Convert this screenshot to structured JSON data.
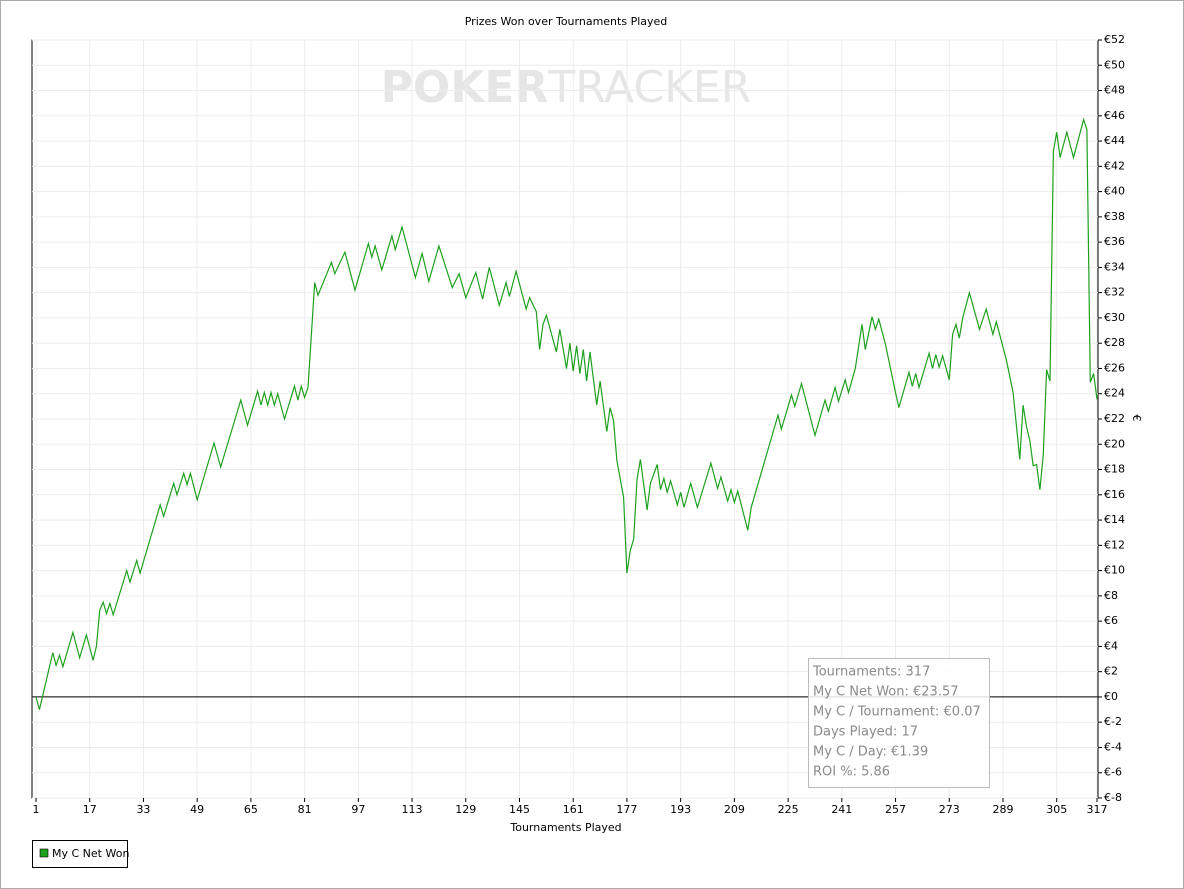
{
  "chart_data": {
    "type": "line",
    "title": "Prizes Won over Tournaments Played",
    "xlabel": "Tournaments Played",
    "ylabel": "€",
    "watermark": [
      "POKER",
      "TRACKER"
    ],
    "grid": true,
    "xlim": [
      1,
      317
    ],
    "ylim": [
      -8,
      52
    ],
    "xticks": [
      1,
      17,
      33,
      49,
      65,
      81,
      97,
      113,
      129,
      145,
      161,
      177,
      193,
      209,
      225,
      241,
      257,
      273,
      289,
      305,
      317
    ],
    "yticks": [
      {
        "value": -8,
        "label": "€-8"
      },
      {
        "value": -6,
        "label": "€-6"
      },
      {
        "value": -4,
        "label": "€-4"
      },
      {
        "value": -2,
        "label": "€-2"
      },
      {
        "value": 0,
        "label": "€0"
      },
      {
        "value": 2,
        "label": "€2"
      },
      {
        "value": 4,
        "label": "€4"
      },
      {
        "value": 6,
        "label": "€6"
      },
      {
        "value": 8,
        "label": "€8"
      },
      {
        "value": 10,
        "label": "€10"
      },
      {
        "value": 12,
        "label": "€12"
      },
      {
        "value": 14,
        "label": "€14"
      },
      {
        "value": 16,
        "label": "€16"
      },
      {
        "value": 18,
        "label": "€18"
      },
      {
        "value": 20,
        "label": "€20"
      },
      {
        "value": 22,
        "label": "€22"
      },
      {
        "value": 24,
        "label": "€24"
      },
      {
        "value": 26,
        "label": "€26"
      },
      {
        "value": 28,
        "label": "€28"
      },
      {
        "value": 30,
        "label": "€30"
      },
      {
        "value": 32,
        "label": "€32"
      },
      {
        "value": 34,
        "label": "€34"
      },
      {
        "value": 36,
        "label": "€36"
      },
      {
        "value": 38,
        "label": "€38"
      },
      {
        "value": 40,
        "label": "€40"
      },
      {
        "value": 42,
        "label": "€42"
      },
      {
        "value": 44,
        "label": "€44"
      },
      {
        "value": 46,
        "label": "€46"
      },
      {
        "value": 48,
        "label": "€48"
      },
      {
        "value": 50,
        "label": "€50"
      },
      {
        "value": 52,
        "label": "€52"
      }
    ],
    "x": [
      1,
      2,
      6,
      7,
      8,
      9,
      12,
      14,
      16,
      18,
      19,
      20,
      21,
      22,
      23,
      24,
      28,
      29,
      31,
      32,
      38,
      39,
      42,
      43,
      45,
      46,
      47,
      49,
      54,
      56,
      62,
      64,
      67,
      68,
      69,
      70,
      71,
      72,
      73,
      75,
      78,
      79,
      80,
      81,
      82,
      84,
      85,
      89,
      90,
      93,
      96,
      100,
      101,
      102,
      104,
      107,
      108,
      110,
      114,
      116,
      118,
      121,
      125,
      127,
      129,
      132,
      134,
      136,
      139,
      141,
      142,
      144,
      147,
      148,
      150,
      151,
      152,
      153,
      156,
      157,
      159,
      160,
      161,
      162,
      163,
      164,
      165,
      166,
      168,
      169,
      171,
      172,
      173,
      174,
      176,
      177,
      178,
      179,
      180,
      181,
      183,
      184,
      186,
      187,
      188,
      189,
      190,
      192,
      193,
      194,
      196,
      198,
      202,
      204,
      205,
      207,
      208,
      209,
      210,
      213,
      214,
      222,
      223,
      226,
      227,
      229,
      233,
      236,
      237,
      239,
      240,
      242,
      243,
      245,
      247,
      248,
      250,
      251,
      252,
      254,
      257,
      258,
      261,
      262,
      263,
      264,
      267,
      268,
      269,
      270,
      271,
      273,
      274,
      275,
      276,
      277,
      279,
      282,
      284,
      286,
      287,
      290,
      292,
      294,
      295,
      296,
      297,
      298,
      299,
      300,
      301,
      302,
      303,
      304,
      305,
      306,
      308,
      310,
      313,
      314,
      315,
      316,
      317
    ],
    "series": [
      {
        "name": "My C Net Won",
        "color": "#1ea01e",
        "values": [
          0,
          -1,
          3.5,
          2.5,
          3.3,
          2.4,
          5.1,
          3.1,
          4.9,
          2.9,
          4.0,
          6.9,
          7.5,
          6.6,
          7.4,
          6.5,
          10.0,
          9.1,
          10.8,
          9.8,
          15.2,
          14.3,
          16.9,
          16.0,
          17.7,
          16.8,
          17.7,
          15.6,
          20.1,
          18.2,
          23.5,
          21.5,
          24.2,
          23.1,
          24.1,
          23.1,
          24.1,
          23.1,
          24.0,
          22.0,
          24.6,
          23.5,
          24.6,
          23.7,
          24.5,
          32.8,
          31.8,
          34.4,
          33.5,
          35.2,
          32.2,
          35.9,
          34.8,
          35.7,
          33.8,
          36.5,
          35.4,
          37.2,
          33.2,
          35.1,
          32.9,
          35.7,
          32.4,
          33.5,
          31.6,
          33.6,
          31.5,
          34.0,
          31.0,
          32.8,
          31.7,
          33.7,
          30.7,
          31.6,
          30.5,
          27.5,
          29.5,
          30.2,
          27.3,
          29.1,
          26.0,
          28.0,
          25.8,
          27.8,
          25.6,
          27.5,
          25.0,
          27.3,
          23.1,
          25.0,
          21.0,
          22.9,
          21.9,
          18.7,
          15.8,
          9.8,
          11.6,
          12.5,
          17.2,
          18.8,
          14.8,
          16.9,
          18.4,
          16.4,
          17.3,
          16.2,
          17.1,
          15.2,
          16.2,
          15.0,
          16.9,
          15.0,
          18.5,
          16.5,
          17.4,
          15.5,
          16.4,
          15.4,
          16.3,
          13.2,
          15.0,
          22.3,
          21.2,
          23.9,
          23.0,
          24.8,
          20.7,
          23.5,
          22.6,
          24.5,
          23.4,
          25.1,
          24.1,
          26.0,
          29.5,
          27.5,
          30.1,
          29.1,
          29.9,
          27.9,
          24.1,
          22.9,
          25.7,
          24.6,
          25.6,
          24.5,
          27.2,
          26.0,
          27.1,
          26.1,
          27.0,
          25.1,
          28.7,
          29.5,
          28.4,
          30.0,
          32.0,
          29.1,
          30.7,
          28.7,
          29.7,
          26.7,
          24.1,
          18.8,
          23.1,
          21.4,
          20.3,
          18.3,
          18.4,
          16.4,
          19.2,
          25.9,
          25.0,
          43.2,
          44.7,
          42.7,
          44.7,
          42.7,
          45.7,
          44.9,
          24.9,
          25.6,
          23.57
        ]
      }
    ],
    "annotations": [
      "Tournaments: 317",
      "My C Net Won: €23.57",
      "My C / Tournament: €0.07",
      "Days Played: 17",
      "My C / Day: €1.39",
      "ROI %: 5.86"
    ]
  }
}
